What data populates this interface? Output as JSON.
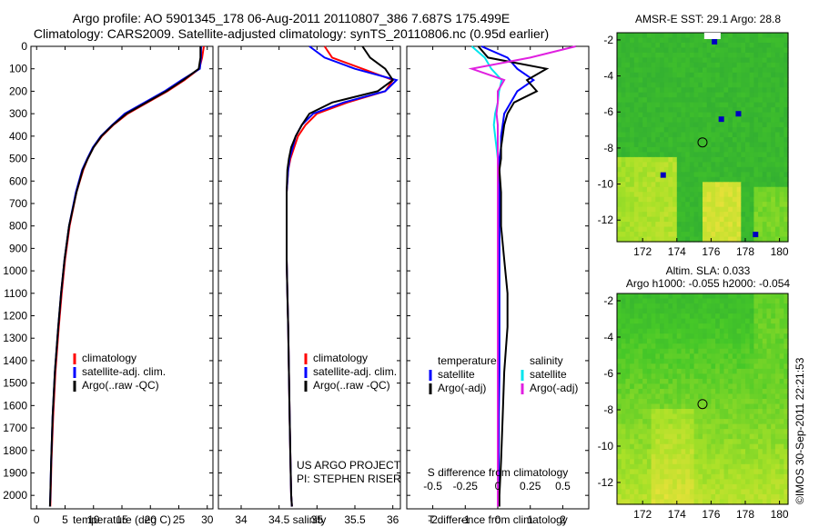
{
  "header": {
    "line1": "Argo profile: AO 5901345_178 06-Aug-2011 20110807_386 7.687S 175.499E",
    "line2": "Climatology: CARS2009. Satellite-adjusted climatology: synTS_20110806.nc (0.95d earlier)"
  },
  "colors": {
    "climatology": "#ff0000",
    "satellite": "#0000ff",
    "argo": "#000000",
    "salinity_satellite": "#00e5ee",
    "salinity_argo": "#e020e0"
  },
  "chart_data": [
    {
      "type": "line",
      "id": "temperature-profile",
      "xlabel": "temperature (deg C)",
      "ylabel": "",
      "xlim": [
        -1,
        31
      ],
      "ylim": [
        2060,
        0
      ],
      "xticks": [
        0,
        5,
        10,
        15,
        20,
        25,
        30
      ],
      "yticks": [
        0,
        100,
        200,
        300,
        400,
        500,
        600,
        700,
        800,
        900,
        1000,
        1100,
        1200,
        1300,
        1400,
        1500,
        1600,
        1700,
        1800,
        1900,
        2000
      ],
      "legend": [
        "climatology",
        "satellite-adj. clim.",
        "Argo(..raw -QC)"
      ],
      "legend_position": "lower-left",
      "series": [
        {
          "name": "climatology",
          "color": "#ff0000",
          "x": [
            29.4,
            29.1,
            28.6,
            26.0,
            23.0,
            19.5,
            16.0,
            13.5,
            11.5,
            10.0,
            9.0,
            8.2,
            7.0,
            5.8,
            5.0,
            4.4,
            3.9,
            3.3,
            2.9,
            2.6,
            2.45,
            2.4
          ],
          "y": [
            0,
            50,
            100,
            150,
            200,
            250,
            300,
            350,
            400,
            450,
            500,
            550,
            650,
            800,
            950,
            1100,
            1250,
            1450,
            1650,
            1850,
            2000,
            2050
          ]
        },
        {
          "name": "satellite-adj. clim.",
          "color": "#0000ff",
          "x": [
            28.9,
            28.9,
            28.7,
            25.5,
            22.5,
            19.0,
            15.5,
            13.3,
            11.3,
            9.9,
            8.9,
            8.0,
            6.9,
            5.7,
            4.9,
            4.3,
            3.8,
            3.2,
            2.8,
            2.55,
            2.4,
            2.35
          ],
          "y": [
            0,
            50,
            100,
            150,
            200,
            250,
            300,
            350,
            400,
            450,
            500,
            550,
            650,
            800,
            950,
            1100,
            1250,
            1450,
            1650,
            1850,
            2000,
            2050
          ]
        },
        {
          "name": "Argo(..raw -QC)",
          "color": "#000000",
          "x": [
            28.8,
            28.8,
            28.5,
            25.8,
            22.8,
            19.3,
            15.8,
            13.4,
            11.4,
            10.0,
            9.0,
            8.1,
            7.0,
            5.7,
            4.9,
            4.3,
            3.8,
            3.2,
            2.8,
            2.55,
            2.4,
            2.35
          ],
          "y": [
            0,
            50,
            100,
            150,
            200,
            250,
            300,
            350,
            400,
            450,
            500,
            550,
            650,
            800,
            950,
            1100,
            1250,
            1450,
            1650,
            1850,
            2000,
            2050
          ]
        }
      ]
    },
    {
      "type": "line",
      "id": "salinity-profile",
      "xlabel": "salinity",
      "xlim": [
        33.7,
        36.1
      ],
      "ylim": [
        2060,
        0
      ],
      "xticks": [
        34,
        34.5,
        35,
        35.5,
        36
      ],
      "legend": [
        "climatology",
        "satellite-adj. clim.",
        "Argo(..raw -QC)"
      ],
      "legend_position": "lower-right",
      "annotation": [
        "US ARGO PROJECT",
        "PI: STEPHEN RISER"
      ],
      "series": [
        {
          "name": "climatology",
          "color": "#ff0000",
          "x": [
            35.1,
            35.2,
            35.6,
            36.0,
            35.9,
            35.4,
            35.0,
            34.85,
            34.75,
            34.7,
            34.65,
            34.62,
            34.6,
            34.6,
            34.6,
            34.61,
            34.62,
            34.63,
            34.64,
            34.65,
            34.66,
            34.67
          ],
          "y": [
            0,
            50,
            100,
            150,
            200,
            250,
            300,
            350,
            400,
            450,
            500,
            550,
            650,
            800,
            950,
            1100,
            1250,
            1450,
            1650,
            1850,
            2000,
            2050
          ]
        },
        {
          "name": "satellite-adj. clim.",
          "color": "#0000ff",
          "x": [
            34.9,
            35.1,
            35.5,
            36.05,
            35.9,
            35.35,
            34.95,
            34.8,
            34.72,
            34.68,
            34.64,
            34.62,
            34.6,
            34.6,
            34.6,
            34.61,
            34.62,
            34.63,
            34.64,
            34.65,
            34.66,
            34.67
          ],
          "y": [
            0,
            50,
            100,
            150,
            200,
            250,
            300,
            350,
            400,
            450,
            500,
            550,
            650,
            800,
            950,
            1100,
            1250,
            1450,
            1650,
            1850,
            2000,
            2050
          ]
        },
        {
          "name": "Argo(..raw -QC)",
          "color": "#000000",
          "x": [
            35.6,
            35.7,
            35.9,
            36.0,
            35.8,
            35.2,
            34.9,
            34.8,
            34.72,
            34.66,
            34.63,
            34.61,
            34.6,
            34.6,
            34.6,
            34.61,
            34.62,
            34.63,
            34.64,
            34.65,
            34.66,
            34.67
          ],
          "y": [
            0,
            50,
            100,
            150,
            200,
            250,
            300,
            350,
            400,
            450,
            500,
            550,
            650,
            800,
            950,
            1100,
            1250,
            1450,
            1650,
            1850,
            2000,
            2050
          ]
        }
      ]
    },
    {
      "type": "line",
      "id": "difference-profile",
      "xlabel": "T difference from climatology",
      "x2label": "S difference from climatology",
      "xlim": [
        -2.8,
        2.8
      ],
      "x2lim": [
        -0.7,
        0.7
      ],
      "ylim": [
        2060,
        0
      ],
      "xticks": [
        -2,
        -1,
        0,
        1,
        2
      ],
      "x2ticks": [
        -0.5,
        -0.25,
        0,
        0.25,
        0.5
      ],
      "x2ticklabels": [
        "-0.5",
        "-0.25",
        "0",
        "0.25",
        "0.5"
      ],
      "legend_groups": [
        {
          "title": "temperature",
          "items": [
            "satellite",
            "Argo(-adj)"
          ]
        },
        {
          "title": "salinity",
          "items": [
            "satellite",
            "Argo(-adj)"
          ]
        }
      ],
      "series": [
        {
          "name": "satellite",
          "group": "temperature",
          "color": "#0000ff",
          "axis": "x",
          "x": [
            -0.5,
            0.3,
            0.6,
            1.1,
            0.6,
            0.4,
            0.2,
            0.15,
            0.1,
            0.1,
            0.05,
            0.05,
            0.05,
            0.05,
            0.05,
            0.05,
            0.05,
            0.05,
            0.03,
            0.03,
            0.02,
            0.02
          ],
          "y": [
            0,
            50,
            100,
            150,
            200,
            250,
            300,
            350,
            400,
            450,
            500,
            550,
            650,
            800,
            950,
            1100,
            1250,
            1450,
            1650,
            1850,
            2000,
            2050
          ]
        },
        {
          "name": "Argo(-adj)",
          "group": "temperature",
          "color": "#000000",
          "axis": "x",
          "x": [
            -0.6,
            -0.3,
            1.5,
            0.9,
            1.2,
            0.5,
            0.3,
            0.2,
            0.15,
            0.1,
            0.1,
            0.05,
            0.1,
            0.1,
            0.2,
            0.3,
            0.3,
            0.2,
            0.15,
            0.1,
            0.05,
            0.05
          ],
          "y": [
            0,
            50,
            100,
            150,
            200,
            250,
            300,
            350,
            400,
            450,
            500,
            550,
            650,
            800,
            950,
            1100,
            1250,
            1450,
            1650,
            1850,
            2000,
            2050
          ]
        },
        {
          "name": "satellite",
          "group": "salinity",
          "color": "#00e5ee",
          "axis": "x2",
          "x": [
            -0.2,
            -0.1,
            -0.05,
            0.03,
            0.01,
            0.0,
            -0.02,
            -0.03,
            -0.02,
            -0.01,
            0.0,
            0.0,
            0.0,
            0.0,
            0.0,
            0.0,
            0.0,
            0.0,
            0.0,
            0.0,
            0.0,
            0.0
          ],
          "y": [
            0,
            50,
            100,
            150,
            200,
            250,
            300,
            350,
            400,
            450,
            500,
            550,
            650,
            800,
            950,
            1100,
            1250,
            1450,
            1650,
            1850,
            2000,
            2050
          ]
        },
        {
          "name": "Argo(-adj)",
          "group": "salinity",
          "color": "#e020e0",
          "axis": "x2",
          "x": [
            0.6,
            0.25,
            -0.2,
            0.05,
            0.0,
            0.0,
            -0.01,
            0.0,
            0.0,
            0.0,
            0.0,
            0.0,
            0.0,
            0.0,
            0.0,
            0.0,
            0.0,
            0.0,
            0.0,
            0.0,
            0.0,
            0.0
          ],
          "y": [
            0,
            50,
            100,
            150,
            200,
            250,
            300,
            350,
            400,
            450,
            500,
            550,
            650,
            800,
            950,
            1100,
            1250,
            1450,
            1650,
            1850,
            2000,
            2050
          ]
        }
      ]
    },
    {
      "type": "heatmap",
      "id": "sst-map",
      "title": "AMSR-E SST: 29.1  Argo: 28.8",
      "xlim": [
        170.5,
        180.5
      ],
      "ylim": [
        -13.2,
        -1.6
      ],
      "xticks": [
        172,
        174,
        176,
        178,
        180
      ],
      "yticks": [
        -2,
        -4,
        -6,
        -8,
        -10,
        -12
      ],
      "float_position": [
        175.499,
        -7.687
      ]
    },
    {
      "type": "heatmap",
      "id": "sla-map",
      "title_lines": [
        "Altim. SLA: 0.033",
        "Argo h1000: -0.055 h2000: -0.054"
      ],
      "xlim": [
        170.5,
        180.5
      ],
      "ylim": [
        -13.2,
        -1.6
      ],
      "xticks": [
        172,
        174,
        176,
        178,
        180
      ],
      "yticks": [
        -2,
        -4,
        -6,
        -8,
        -10,
        -12
      ],
      "float_position": [
        175.499,
        -7.687
      ]
    }
  ],
  "footer": {
    "stamp": "©IMOS 30-Sep-2011 22:21:53"
  }
}
